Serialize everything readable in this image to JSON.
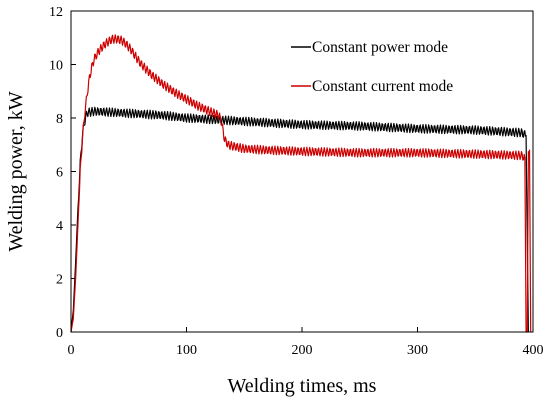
{
  "chart_data": {
    "type": "line",
    "title": "",
    "xlabel": "Welding times, ms",
    "ylabel": "Welding power, kW",
    "xlim": [
      0,
      400
    ],
    "ylim": [
      0,
      12
    ],
    "xticks": [
      "0",
      "100",
      "200",
      "300",
      "400"
    ],
    "yticks": [
      "0",
      "2",
      "4",
      "6",
      "8",
      "10",
      "12"
    ],
    "grid": false,
    "legend": "top-right",
    "series": [
      {
        "name": "Constant power mode",
        "color": "#000000",
        "x": [
          0,
          2,
          4,
          6,
          8,
          10,
          12,
          14,
          20,
          40,
          60,
          80,
          100,
          120,
          140,
          160,
          200,
          250,
          300,
          350,
          390,
          394,
          395,
          396
        ],
        "y": [
          0,
          0.8,
          2.6,
          4.6,
          6.3,
          7.4,
          7.9,
          8.2,
          8.25,
          8.2,
          8.15,
          8.1,
          8.0,
          7.95,
          7.9,
          7.85,
          7.75,
          7.7,
          7.6,
          7.55,
          7.45,
          7.35,
          3.5,
          0
        ]
      },
      {
        "name": "Constant current mode",
        "color": "#cc0000",
        "x": [
          0,
          2,
          4,
          6,
          8,
          10,
          12,
          14,
          16,
          18,
          20,
          24,
          28,
          32,
          36,
          40,
          44,
          48,
          52,
          56,
          60,
          70,
          80,
          90,
          100,
          110,
          120,
          128,
          130,
          133,
          136,
          140,
          150,
          170,
          200,
          250,
          300,
          350,
          390,
          393,
          394,
          395,
          396,
          397,
          398
        ],
        "y": [
          0,
          0.5,
          2.0,
          4.0,
          6.0,
          7.3,
          8.2,
          8.9,
          9.5,
          9.9,
          10.2,
          10.5,
          10.7,
          10.85,
          10.95,
          10.95,
          10.9,
          10.75,
          10.55,
          10.3,
          10.05,
          9.6,
          9.25,
          8.95,
          8.7,
          8.45,
          8.25,
          8.1,
          7.9,
          7.2,
          7.0,
          6.95,
          6.85,
          6.8,
          6.75,
          6.7,
          6.7,
          6.65,
          6.6,
          6.5,
          0,
          0,
          6.8,
          6.8,
          0
        ]
      }
    ]
  }
}
